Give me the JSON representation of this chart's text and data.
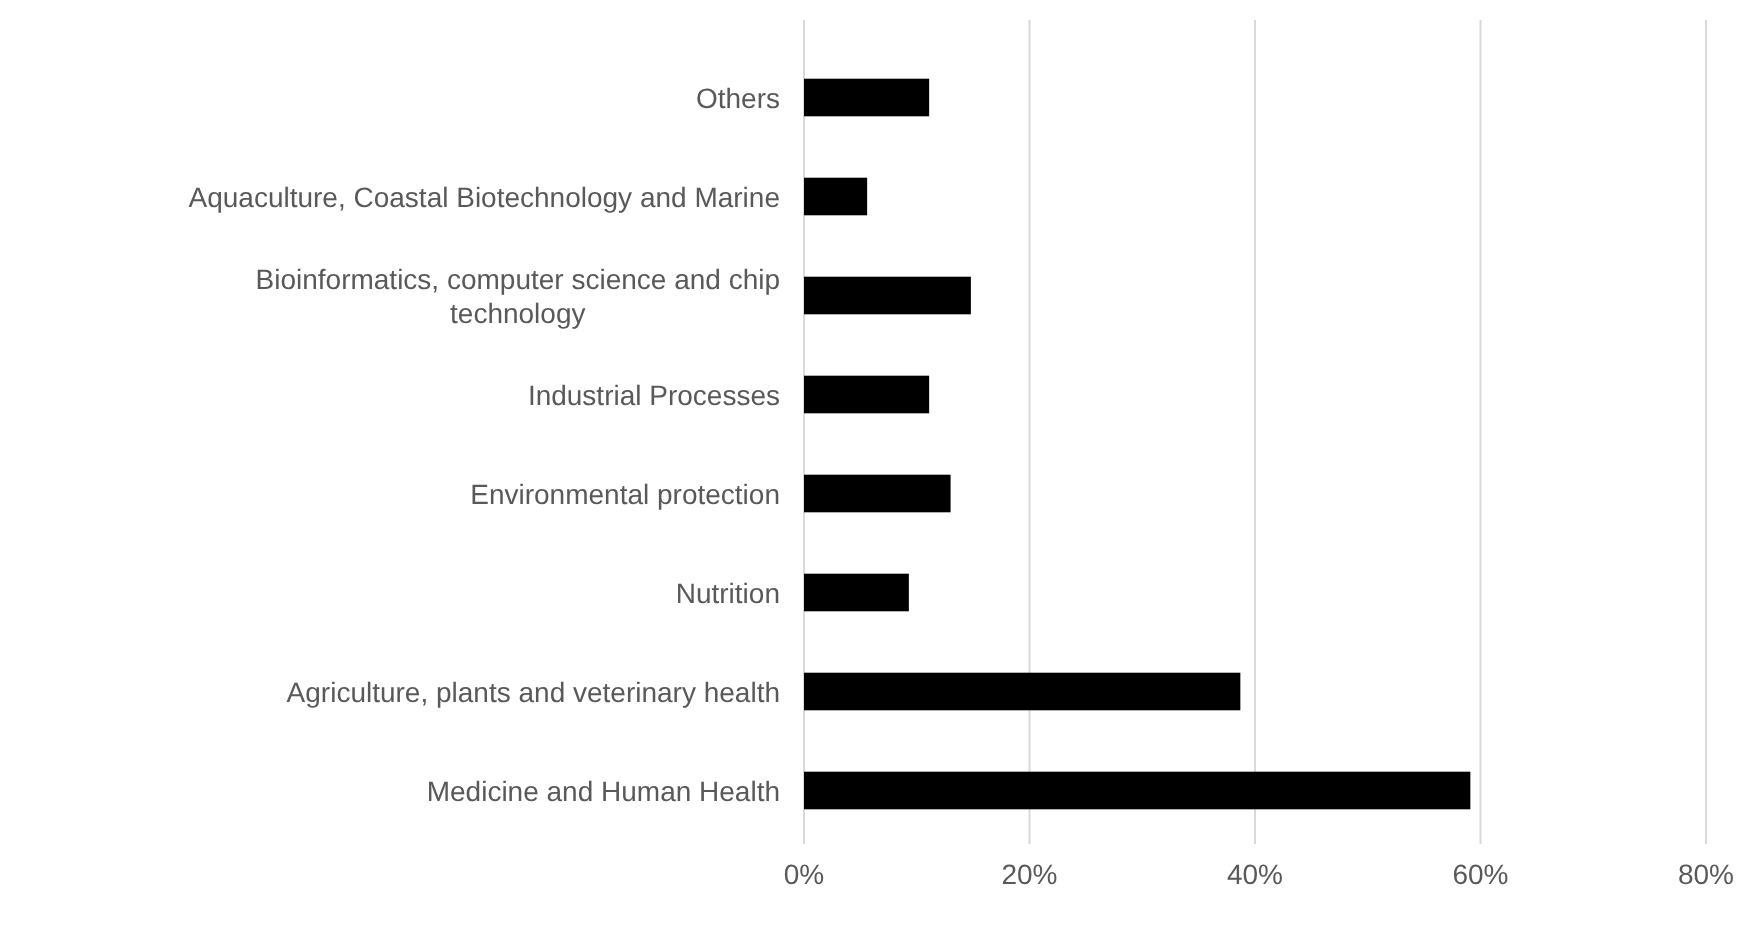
{
  "chart_data": {
    "type": "bar",
    "orientation": "horizontal",
    "categories": [
      "Others",
      "Aquaculture, Coastal Biotechnology and Marine",
      "Bioinformatics, computer science and chip technology",
      "Industrial Processes",
      "Environmental protection",
      "Nutrition",
      "Agriculture, plants and veterinary health",
      "Medicine and Human Health"
    ],
    "values": [
      11.1,
      5.6,
      14.8,
      11.1,
      13.0,
      9.3,
      38.7,
      59.1
    ],
    "color": "#000000",
    "xlim": [
      0,
      80
    ],
    "xticks": [
      {
        "value": 0,
        "label": "0%"
      },
      {
        "value": 20,
        "label": "20%"
      },
      {
        "value": 40,
        "label": "40%"
      },
      {
        "value": 60,
        "label": "60%"
      },
      {
        "value": 80,
        "label": "80%"
      }
    ],
    "grid": "x"
  }
}
